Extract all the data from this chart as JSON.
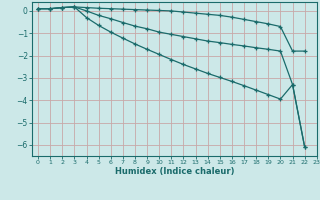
{
  "xlabel": "Humidex (Indice chaleur)",
  "bg_color": "#cce8e8",
  "grid_color": "#c8a8a8",
  "line_color": "#1a6b6b",
  "xlim": [
    -0.5,
    23
  ],
  "ylim": [
    -6.5,
    0.4
  ],
  "yticks": [
    0,
    -1,
    -2,
    -3,
    -4,
    -5,
    -6
  ],
  "xticks": [
    0,
    1,
    2,
    3,
    4,
    5,
    6,
    7,
    8,
    9,
    10,
    11,
    12,
    13,
    14,
    15,
    16,
    17,
    18,
    19,
    20,
    21,
    22,
    23
  ],
  "line1_x": [
    0,
    1,
    2,
    3,
    4,
    5,
    6,
    7,
    8,
    9,
    10,
    11,
    12,
    13,
    14,
    15,
    16,
    17,
    18,
    19,
    20,
    21,
    22
  ],
  "line1_y": [
    0.1,
    0.1,
    0.15,
    0.18,
    0.15,
    0.12,
    0.1,
    0.08,
    0.06,
    0.04,
    0.02,
    0.0,
    -0.05,
    -0.1,
    -0.15,
    -0.2,
    -0.28,
    -0.38,
    -0.48,
    -0.58,
    -0.7,
    -1.8,
    -1.8
  ],
  "line2_x": [
    0,
    1,
    2,
    3,
    4,
    5,
    6,
    7,
    8,
    9,
    10,
    11,
    12,
    13,
    14,
    15,
    16,
    17,
    18,
    19,
    20,
    21,
    22
  ],
  "line2_y": [
    0.1,
    0.1,
    0.15,
    0.18,
    0.0,
    -0.2,
    -0.35,
    -0.52,
    -0.68,
    -0.8,
    -0.95,
    -1.05,
    -1.15,
    -1.25,
    -1.35,
    -1.42,
    -1.5,
    -1.57,
    -1.65,
    -1.72,
    -1.8,
    -3.3,
    -6.1
  ],
  "line3_x": [
    0,
    1,
    2,
    3,
    4,
    5,
    6,
    7,
    8,
    9,
    10,
    11,
    12,
    13,
    14,
    15,
    16,
    17,
    18,
    19,
    20,
    21,
    22
  ],
  "line3_y": [
    0.1,
    0.1,
    0.15,
    0.18,
    -0.3,
    -0.65,
    -0.95,
    -1.22,
    -1.48,
    -1.72,
    -1.95,
    -2.18,
    -2.4,
    -2.6,
    -2.8,
    -2.98,
    -3.16,
    -3.35,
    -3.55,
    -3.75,
    -3.95,
    -3.3,
    -6.1
  ]
}
